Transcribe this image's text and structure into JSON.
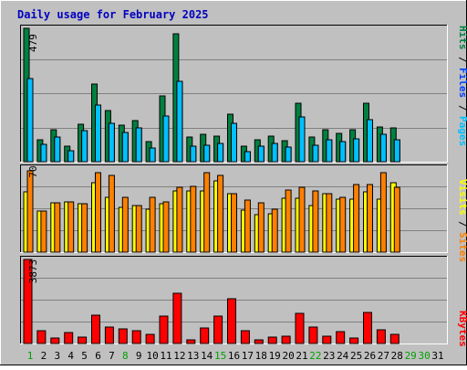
{
  "title": "Daily usage for February 2025",
  "colors": {
    "background": "#C0C0C0",
    "plot": "#C0C0C0",
    "title": "#0000C0",
    "hits": "#008040",
    "files": "#0040FF",
    "pages": "#00C0FF",
    "sites": "#FF8000",
    "visits": "#FFFF00",
    "kbytes": "#FF0000",
    "weekend": "#00A000",
    "weekday": "#000000"
  },
  "chart_data": [
    {
      "type": "bar",
      "panel": "hits-files-pages",
      "y_label": "479",
      "ylim": [
        0,
        479
      ],
      "legend": [
        "Hits",
        "/",
        "Files",
        "/",
        "Pages"
      ],
      "categories": [
        "1",
        "2",
        "3",
        "4",
        "5",
        "6",
        "7",
        "8",
        "9",
        "10",
        "11",
        "12",
        "13",
        "14",
        "15",
        "16",
        "17",
        "18",
        "19",
        "20",
        "21",
        "22",
        "23",
        "24",
        "25",
        "26",
        "27",
        "28"
      ],
      "series": [
        {
          "name": "Hits",
          "values": [
            479,
            80,
            115,
            56,
            135,
            280,
            185,
            130,
            148,
            71,
            235,
            460,
            89,
            98,
            91,
            172,
            56,
            78,
            91,
            74,
            209,
            89,
            115,
            103,
            115,
            209,
            126,
            121
          ]
        },
        {
          "name": "Files",
          "values": [
            300,
            62,
            89,
            41,
            112,
            205,
            137,
            105,
            121,
            49,
            165,
            290,
            56,
            58,
            64,
            137,
            36,
            57,
            64,
            54,
            162,
            59,
            78,
            73,
            81,
            150,
            99,
            80
          ]
        },
        {
          "name": "Pages",
          "values": [
            300,
            62,
            89,
            41,
            112,
            205,
            137,
            105,
            121,
            49,
            165,
            290,
            56,
            58,
            64,
            137,
            36,
            57,
            64,
            54,
            162,
            59,
            78,
            73,
            81,
            150,
            99,
            80
          ]
        }
      ],
      "weekend_days": [
        1,
        8,
        15,
        22,
        29,
        30
      ]
    },
    {
      "type": "bar",
      "panel": "sites-visits",
      "y_label": "70",
      "ylim": [
        0,
        70
      ],
      "legend": [
        "Sites",
        "/",
        "Visits"
      ],
      "categories": [
        "1",
        "2",
        "3",
        "4",
        "5",
        "6",
        "7",
        "8",
        "9",
        "10",
        "11",
        "12",
        "13",
        "14",
        "15",
        "16",
        "17",
        "18",
        "19",
        "20",
        "21",
        "22",
        "23",
        "24",
        "25",
        "26",
        "27",
        "28"
      ],
      "series": [
        {
          "name": "Sites",
          "values": [
            50,
            34,
            41,
            42,
            40,
            58,
            46,
            37,
            39,
            36,
            40,
            51,
            51,
            51,
            59,
            49,
            35,
            31,
            32,
            45,
            45,
            39,
            49,
            44,
            44,
            50,
            44,
            58
          ]
        },
        {
          "name": "Visits",
          "values": [
            68,
            34,
            41,
            42,
            40,
            66,
            64,
            46,
            39,
            46,
            42,
            54,
            55,
            66,
            64,
            49,
            43,
            41,
            36,
            52,
            54,
            51,
            49,
            46,
            56,
            56,
            66,
            54
          ]
        }
      ]
    },
    {
      "type": "bar",
      "panel": "kbytes",
      "y_label": "3873",
      "ylim": [
        0,
        3873
      ],
      "legend": [
        "KBytes"
      ],
      "categories": [
        "1",
        "2",
        "3",
        "4",
        "5",
        "6",
        "7",
        "8",
        "9",
        "10",
        "11",
        "12",
        "13",
        "14",
        "15",
        "16",
        "17",
        "18",
        "19",
        "20",
        "21",
        "22",
        "23",
        "24",
        "25",
        "26",
        "27",
        "28"
      ],
      "series": [
        {
          "name": "KBytes",
          "values": [
            3873,
            580,
            260,
            500,
            300,
            1300,
            760,
            680,
            570,
            420,
            1250,
            2310,
            170,
            720,
            1250,
            2050,
            570,
            150,
            300,
            320,
            1390,
            760,
            350,
            550,
            250,
            1430,
            640,
            440
          ]
        }
      ]
    }
  ],
  "x_axis": {
    "labels": [
      "1",
      "2",
      "3",
      "4",
      "5",
      "6",
      "7",
      "8",
      "9",
      "10",
      "11",
      "12",
      "13",
      "14",
      "15",
      "16",
      "17",
      "18",
      "19",
      "20",
      "21",
      "22",
      "23",
      "24",
      "25",
      "26",
      "27",
      "28",
      "29",
      "30",
      "31"
    ],
    "weekend_days": [
      1,
      8,
      15,
      22,
      29,
      30
    ]
  }
}
